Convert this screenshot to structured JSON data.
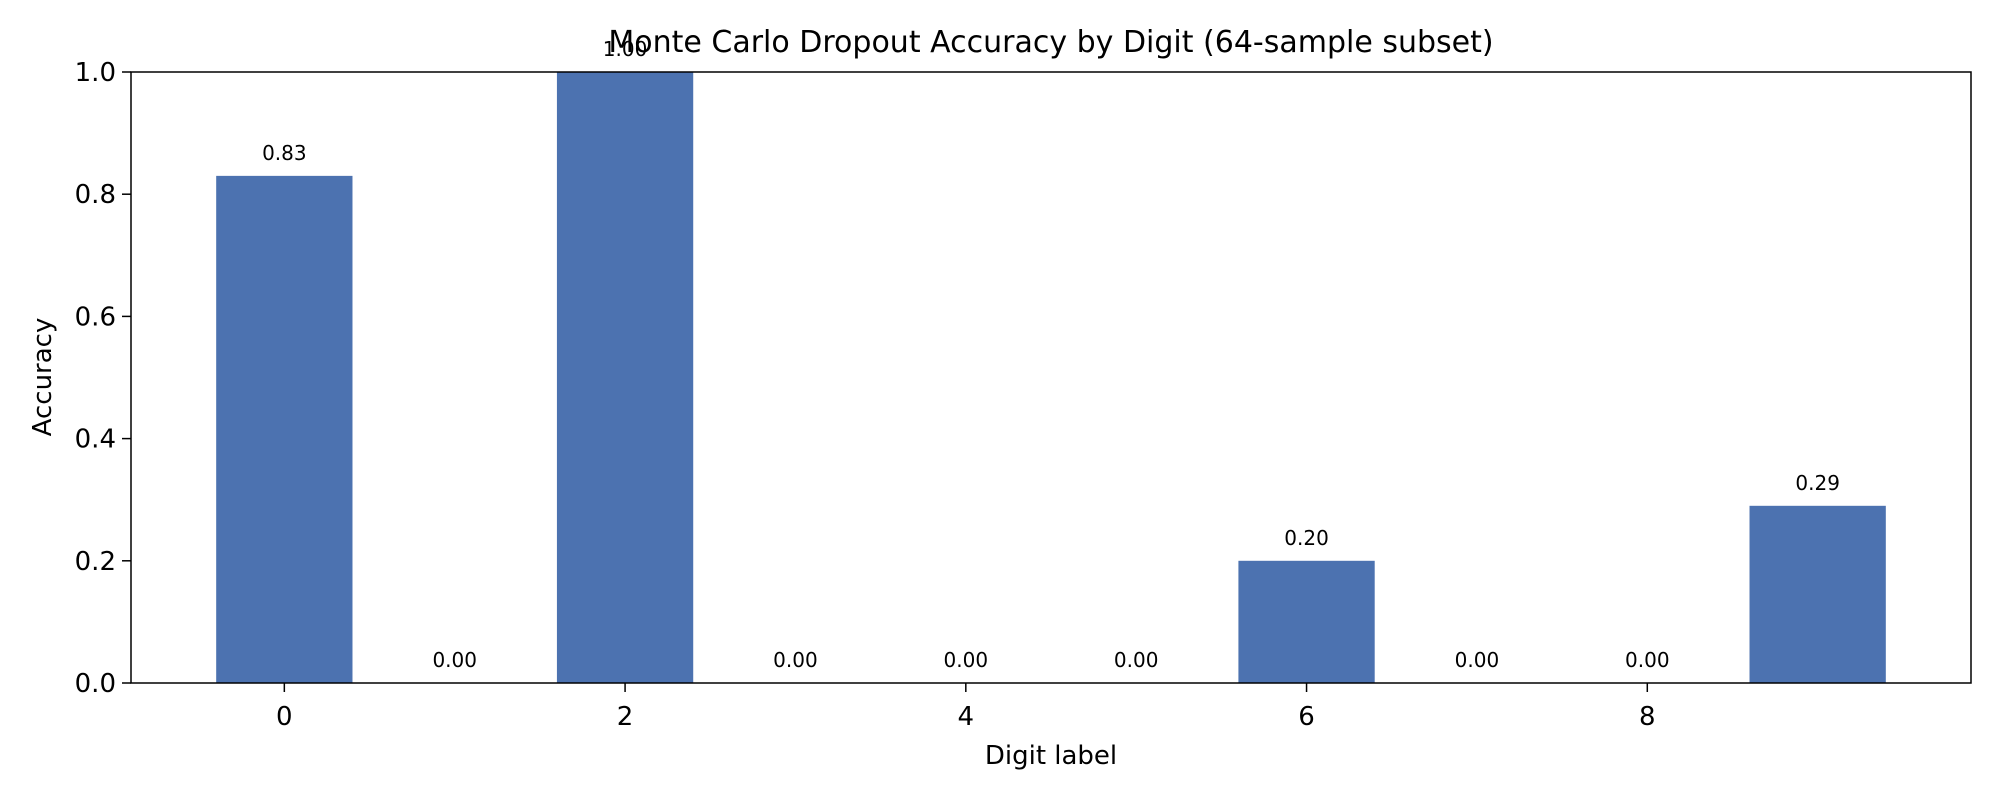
{
  "chart_data": {
    "type": "bar",
    "title": "Monte Carlo Dropout Accuracy by Digit (64-sample subset)",
    "xlabel": "Digit label",
    "ylabel": "Accuracy",
    "categories": [
      0,
      1,
      2,
      3,
      4,
      5,
      6,
      7,
      8,
      9
    ],
    "values": [
      0.83,
      0.0,
      1.0,
      0.0,
      0.0,
      0.0,
      0.2,
      0.0,
      0.0,
      0.29
    ],
    "value_labels": [
      "0.83",
      "0.00",
      "1.00",
      "0.00",
      "0.00",
      "0.00",
      "0.20",
      "0.00",
      "0.00",
      "0.29"
    ],
    "xticks": [
      0,
      2,
      4,
      6,
      8
    ],
    "xtick_labels": [
      "0",
      "2",
      "4",
      "6",
      "8"
    ],
    "yticks": [
      0.0,
      0.2,
      0.4,
      0.6,
      0.8,
      1.0
    ],
    "ytick_labels": [
      "0.0",
      "0.2",
      "0.4",
      "0.6",
      "0.8",
      "1.0"
    ],
    "xlim": [
      -0.9,
      9.9
    ],
    "ylim": [
      0,
      1.0
    ],
    "grid": false,
    "bar_color": "#4c72b0"
  }
}
